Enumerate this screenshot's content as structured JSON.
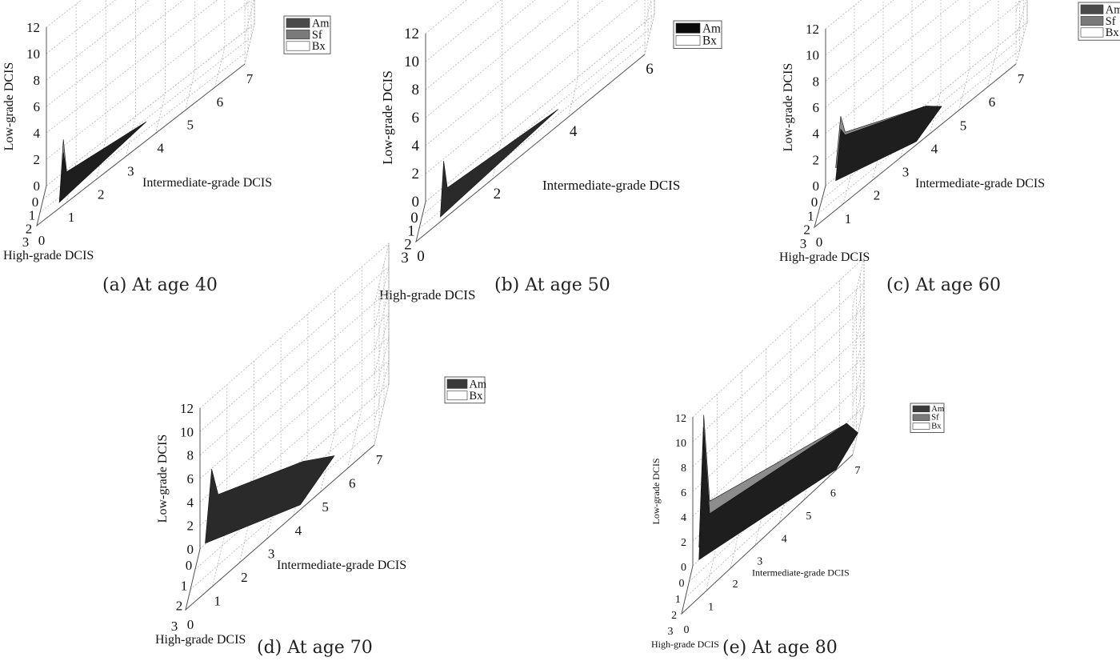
{
  "chart_data": [
    {
      "id": "a",
      "type": "surface3d",
      "caption": "(a) At age 40",
      "xlabel": "High-grade DCIS",
      "ylabel": "Intermediate-grade DCIS",
      "zlabel": "Low-grade DCIS",
      "x_ticks": [
        "0",
        "1",
        "2",
        "3"
      ],
      "y_ticks": [
        "7",
        "6",
        "5",
        "4",
        "3",
        "2",
        "1",
        "0"
      ],
      "z_ticks": [
        "0",
        "2",
        "4",
        "6",
        "8",
        "10",
        "12"
      ],
      "zlim": [
        0,
        12
      ],
      "grid": true,
      "legend_position": "top-right",
      "legend": [
        {
          "name": "Am",
          "color": "#4a4a4a"
        },
        {
          "name": "Sf",
          "color": "#7a7a7a"
        },
        {
          "name": "Bx",
          "color": "#ffffff"
        }
      ],
      "surfaces": [
        {
          "name": "Sf",
          "peak_low_grade": 3.5
        },
        {
          "name": "Am",
          "peak_low_grade": 2.5
        }
      ]
    },
    {
      "id": "b",
      "type": "surface3d",
      "caption": "(b) At age 50",
      "xlabel": "High-grade DCIS",
      "ylabel": "Intermediate-grade DCIS",
      "zlabel": "Low-grade DCIS",
      "x_ticks": [
        "0",
        "1",
        "2",
        "3"
      ],
      "y_ticks": [
        "6",
        "4",
        "2",
        "0"
      ],
      "z_ticks": [
        "0",
        "2",
        "4",
        "6",
        "8",
        "10",
        "12"
      ],
      "zlim": [
        0,
        12
      ],
      "grid": true,
      "legend_position": "top-right",
      "legend": [
        {
          "name": "Am",
          "color": "#0a0a0a"
        },
        {
          "name": "Bx",
          "color": "#ffffff"
        }
      ],
      "surfaces": [
        {
          "name": "Am",
          "peak_low_grade": 3
        }
      ]
    },
    {
      "id": "c",
      "type": "surface3d",
      "caption": "(c) At age 60",
      "xlabel": "High-grade DCIS",
      "ylabel": "Intermediate-grade DCIS",
      "zlabel": "Low-grade DCIS",
      "x_ticks": [
        "0",
        "1",
        "2",
        "3"
      ],
      "y_ticks": [
        "7",
        "6",
        "5",
        "4",
        "3",
        "2",
        "1",
        "0"
      ],
      "z_ticks": [
        "0",
        "2",
        "4",
        "6",
        "8",
        "10",
        "12"
      ],
      "zlim": [
        0,
        12
      ],
      "grid": true,
      "legend_position": "top-right",
      "legend": [
        {
          "name": "Am",
          "color": "#4a4a4a"
        },
        {
          "name": "Sf",
          "color": "#7a7a7a"
        },
        {
          "name": "Bx",
          "color": "#ffffff"
        }
      ],
      "surfaces": [
        {
          "name": "Sf",
          "peak_low_grade": 5.5
        },
        {
          "name": "Am",
          "peak_low_grade": 4.5
        }
      ]
    },
    {
      "id": "d",
      "type": "surface3d",
      "caption": "(d) At age 70",
      "xlabel": "High-grade DCIS",
      "ylabel": "Intermediate-grade DCIS",
      "zlabel": "Low-grade DCIS",
      "x_ticks": [
        "0",
        "1",
        "2",
        "3"
      ],
      "y_ticks": [
        "7",
        "6",
        "5",
        "4",
        "3",
        "2",
        "1",
        "0"
      ],
      "z_ticks": [
        "0",
        "2",
        "4",
        "6",
        "8",
        "10",
        "12"
      ],
      "zlim": [
        0,
        12
      ],
      "grid": true,
      "legend_position": "top-right",
      "legend": [
        {
          "name": "Am",
          "color": "#3a3a3a"
        },
        {
          "name": "Bx",
          "color": "#ffffff"
        }
      ],
      "surfaces": [
        {
          "name": "Am",
          "peak_low_grade": 8
        }
      ]
    },
    {
      "id": "e",
      "type": "surface3d",
      "caption": "(e) At age 80",
      "xlabel": "High-grade DCIS",
      "ylabel": "Intermediate-grade DCIS",
      "zlabel": "Low-grade DCIS",
      "x_ticks": [
        "0",
        "1",
        "2",
        "3"
      ],
      "y_ticks": [
        "7",
        "6",
        "5",
        "4",
        "3",
        "2",
        "1",
        "0"
      ],
      "z_ticks": [
        "0",
        "2",
        "4",
        "6",
        "8",
        "10",
        "12"
      ],
      "zlim": [
        0,
        12
      ],
      "grid": true,
      "legend_position": "top-right",
      "legend": [
        {
          "name": "Am",
          "color": "#3a3a3a"
        },
        {
          "name": "Sf",
          "color": "#7a7a7a"
        },
        {
          "name": "Bx",
          "color": "#ffffff"
        }
      ],
      "surfaces": [
        {
          "name": "Sf",
          "peak_low_grade": 13
        },
        {
          "name": "Am",
          "peak_low_grade": 12
        }
      ]
    }
  ]
}
